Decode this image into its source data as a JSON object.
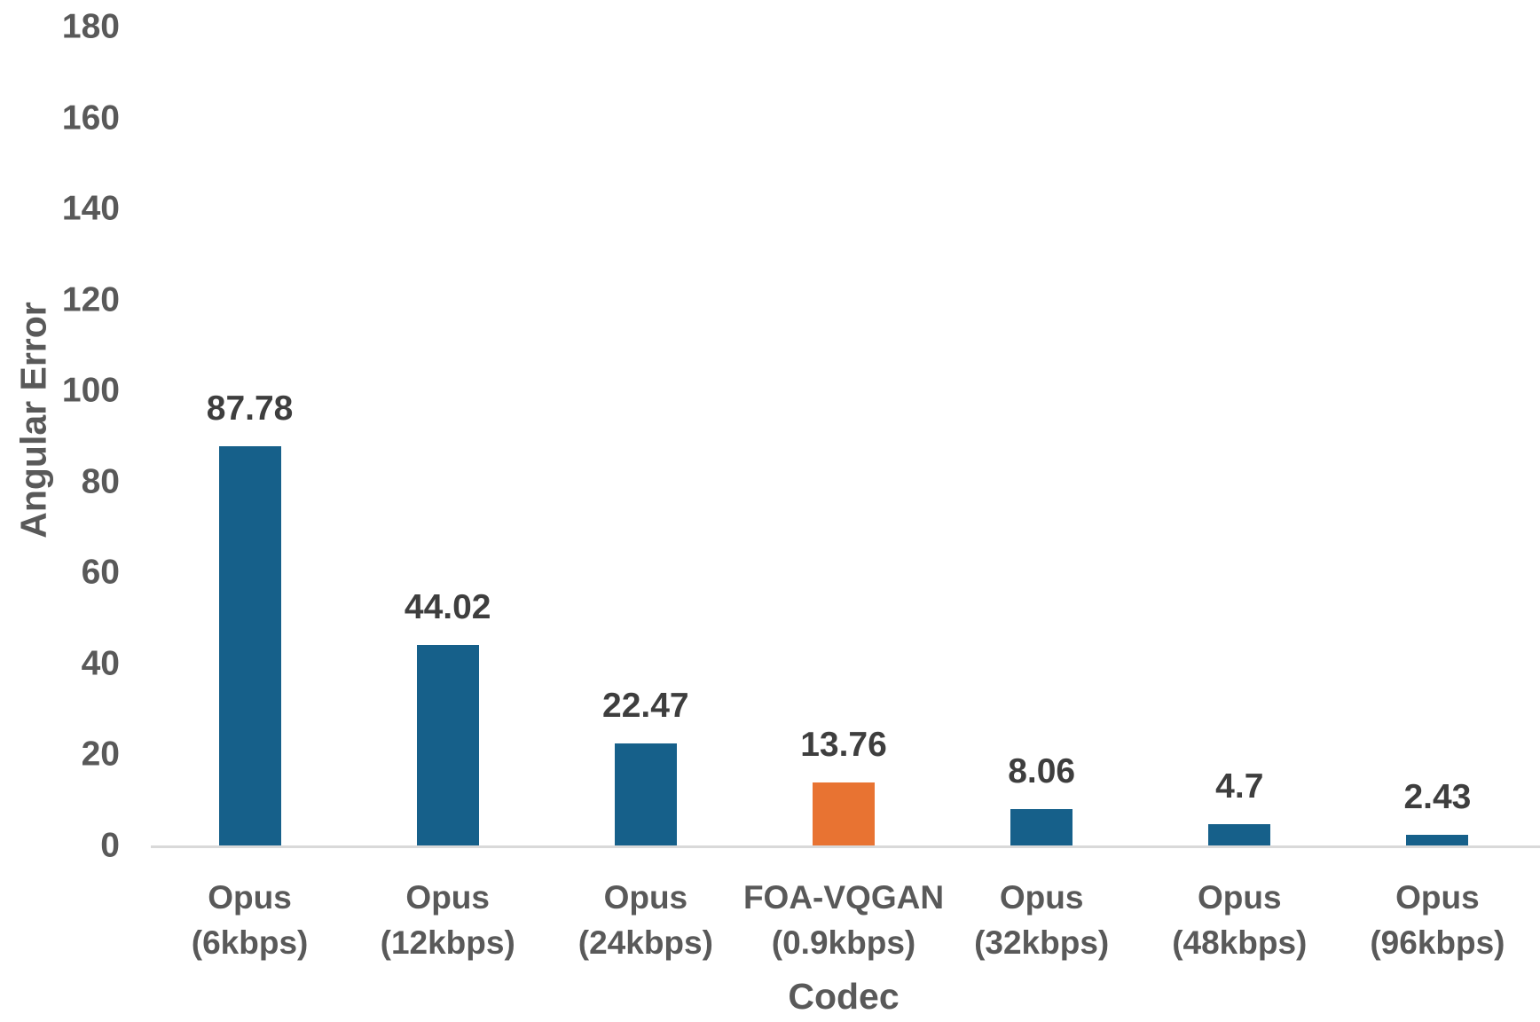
{
  "chart_data": {
    "type": "bar",
    "title": "",
    "xlabel": "Codec",
    "ylabel": "Angular Error",
    "categories": [
      "Opus\n(6kbps)",
      "Opus\n(12kbps)",
      "Opus\n(24kbps)",
      "FOA-VQGAN\n(0.9kbps)",
      "Opus\n(32kbps)",
      "Opus\n(48kbps)",
      "Opus\n(96kbps)"
    ],
    "values": [
      87.78,
      44.02,
      22.47,
      13.76,
      8.06,
      4.7,
      2.43
    ],
    "value_labels": [
      "87.78",
      "44.02",
      "22.47",
      "13.76",
      "8.06",
      "4.7",
      "2.43"
    ],
    "ylim": [
      0,
      180
    ],
    "yticks": [
      0,
      20,
      40,
      60,
      80,
      100,
      120,
      140,
      160,
      180
    ],
    "grid": false,
    "legend_position": "none",
    "bar_color": "#16608A",
    "highlight_color": "#E87332",
    "highlight_index": 3,
    "axis_line_color": "#D9D9D9",
    "tick_label_color": "#595959",
    "value_label_color": "#3E3E3E"
  }
}
